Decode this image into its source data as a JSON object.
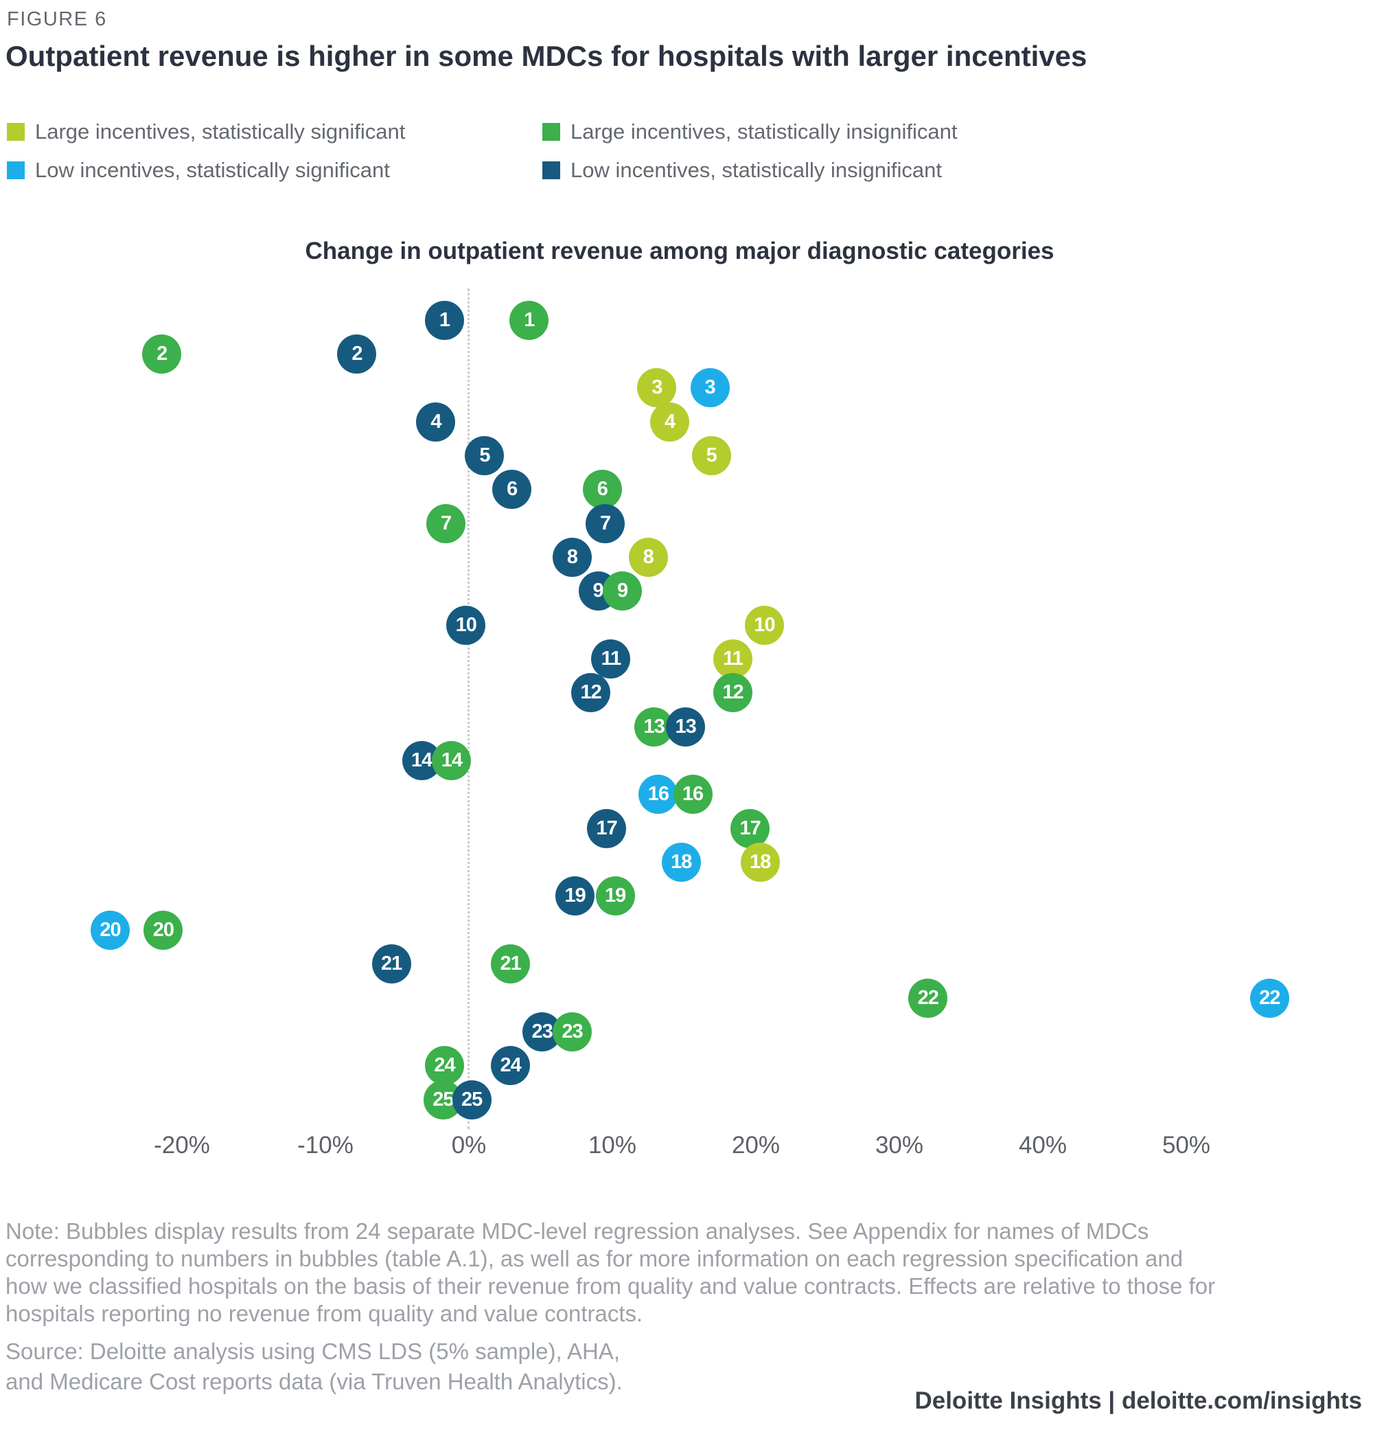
{
  "figure_label": "FIGURE 6",
  "title": "Outpatient revenue is higher in some MDCs for hospitals with larger incentives",
  "chart_data": {
    "type": "scatter",
    "title": "Change in outpatient revenue among major diagnostic categories",
    "x_axis": {
      "unit": "%",
      "min": -27,
      "max": 58,
      "grid": false,
      "zero_reference_line": true,
      "ticks": [
        {
          "label": "-20%",
          "value": -20
        },
        {
          "label": "-10%",
          "value": -10
        },
        {
          "label": "0%",
          "value": 0
        },
        {
          "label": "10%",
          "value": 10
        },
        {
          "label": "20%",
          "value": 20
        },
        {
          "label": "30%",
          "value": 30
        },
        {
          "label": "40%",
          "value": 40
        },
        {
          "label": "50%",
          "value": 50
        }
      ]
    },
    "colors": {
      "large_sig": "#b5cc2d",
      "large_insig": "#3cb04a",
      "low_sig": "#1daee9",
      "low_insig": "#175a80"
    },
    "legend": [
      {
        "key": "large_sig",
        "label": "Large incentives, statistically significant",
        "color": "#b5cc2d"
      },
      {
        "key": "large_insig",
        "label": "Large incentives, statistically insignificant",
        "color": "#3cb04a"
      },
      {
        "key": "low_sig",
        "label": "Low incentives, statistically significant",
        "color": "#1daee9"
      },
      {
        "key": "low_insig",
        "label": "Low incentives, statistically insignificant",
        "color": "#175a80"
      }
    ],
    "rows": [
      {
        "mdc": "1",
        "large": {
          "value": 4.2,
          "significant": false
        },
        "low": {
          "value": -1.7,
          "significant": false
        },
        "top": "large"
      },
      {
        "mdc": "2",
        "large": {
          "value": -21.4,
          "significant": false
        },
        "low": {
          "value": -7.8,
          "significant": false
        },
        "top": "large"
      },
      {
        "mdc": "3",
        "large": {
          "value": 13.1,
          "significant": true
        },
        "low": {
          "value": 16.8,
          "significant": true
        },
        "top": "large"
      },
      {
        "mdc": "4",
        "large": {
          "value": 14.0,
          "significant": true
        },
        "low": {
          "value": -2.3,
          "significant": false
        },
        "top": "large"
      },
      {
        "mdc": "5",
        "large": {
          "value": 16.9,
          "significant": true
        },
        "low": {
          "value": 1.1,
          "significant": false
        },
        "top": "large"
      },
      {
        "mdc": "6",
        "large": {
          "value": 9.3,
          "significant": false
        },
        "low": {
          "value": 3.0,
          "significant": false
        },
        "top": "large"
      },
      {
        "mdc": "7",
        "large": {
          "value": -1.6,
          "significant": false
        },
        "low": {
          "value": 9.5,
          "significant": false
        },
        "top": "low"
      },
      {
        "mdc": "8",
        "large": {
          "value": 12.5,
          "significant": true
        },
        "low": {
          "value": 7.2,
          "significant": false
        },
        "top": "large"
      },
      {
        "mdc": "9",
        "large": {
          "value": 10.7,
          "significant": false
        },
        "low": {
          "value": 9.0,
          "significant": false
        },
        "top": "large"
      },
      {
        "mdc": "10",
        "large": {
          "value": 20.6,
          "significant": true
        },
        "low": {
          "value": -0.2,
          "significant": false
        },
        "top": "large"
      },
      {
        "mdc": "11",
        "large": {
          "value": 18.4,
          "significant": true
        },
        "low": {
          "value": 9.9,
          "significant": false
        },
        "top": "large"
      },
      {
        "mdc": "12",
        "large": {
          "value": 18.4,
          "significant": false
        },
        "low": {
          "value": 8.5,
          "significant": false
        },
        "top": "large"
      },
      {
        "mdc": "13",
        "large": {
          "value": 12.9,
          "significant": false
        },
        "low": {
          "value": 15.1,
          "significant": false
        },
        "top": "low"
      },
      {
        "mdc": "14",
        "large": {
          "value": -1.2,
          "significant": false
        },
        "low": {
          "value": -3.3,
          "significant": false
        },
        "top": "large"
      },
      {
        "mdc": "16",
        "large": {
          "value": 15.6,
          "significant": false
        },
        "low": {
          "value": 13.2,
          "significant": true
        },
        "top": "large"
      },
      {
        "mdc": "17",
        "large": {
          "value": 19.6,
          "significant": false
        },
        "low": {
          "value": 9.6,
          "significant": false
        },
        "top": "large"
      },
      {
        "mdc": "18",
        "large": {
          "value": 20.3,
          "significant": true
        },
        "low": {
          "value": 14.8,
          "significant": true
        },
        "top": "large"
      },
      {
        "mdc": "19",
        "large": {
          "value": 10.2,
          "significant": false
        },
        "low": {
          "value": 7.4,
          "significant": false
        },
        "top": "large"
      },
      {
        "mdc": "20",
        "large": {
          "value": -21.3,
          "significant": false
        },
        "low": {
          "value": -25.0,
          "significant": true
        },
        "top": "large"
      },
      {
        "mdc": "21",
        "large": {
          "value": 2.9,
          "significant": false
        },
        "low": {
          "value": -5.4,
          "significant": false
        },
        "top": "large"
      },
      {
        "mdc": "22",
        "large": {
          "value": 32.0,
          "significant": false
        },
        "low": {
          "value": 55.8,
          "significant": true
        },
        "top": "large"
      },
      {
        "mdc": "23",
        "large": {
          "value": 7.2,
          "significant": false
        },
        "low": {
          "value": 5.1,
          "significant": false
        },
        "top": "large"
      },
      {
        "mdc": "24",
        "large": {
          "value": -1.7,
          "significant": false
        },
        "low": {
          "value": 2.9,
          "significant": false
        },
        "top": "large"
      },
      {
        "mdc": "25",
        "large": {
          "value": -1.8,
          "significant": false
        },
        "low": {
          "value": 0.2,
          "significant": false
        },
        "top": "low"
      }
    ]
  },
  "notes": "Note: Bubbles display results from 24 separate MDC-level regression analyses. See Appendix for names of MDCs\ncorresponding to numbers in bubbles (table A.1), as well as for more information on each regression specification and\nhow we classified hospitals on the basis of their revenue from quality and value contracts. Effects are relative to those for\nhospitals reporting no revenue from quality and value contracts.",
  "source": "Source: Deloitte analysis using CMS LDS (5% sample), AHA,\nand Medicare Cost reports data (via Truven Health Analytics).",
  "footer": "Deloitte Insights | deloitte.com/insights"
}
